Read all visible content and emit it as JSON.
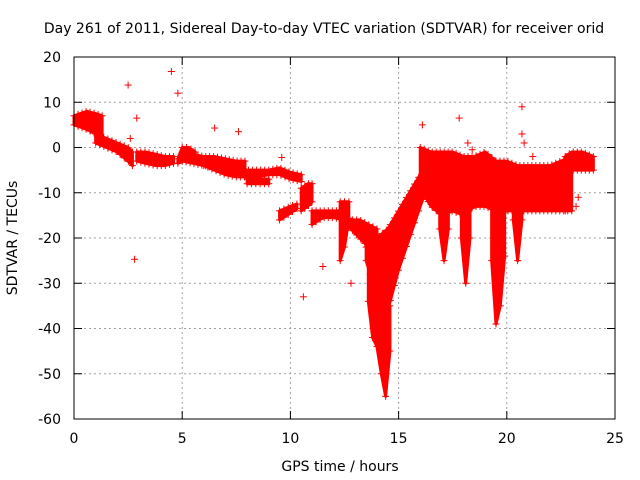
{
  "chart_data": {
    "type": "scatter",
    "title": "Day 261 of 2011, Sidereal Day-to-day VTEC variation (SDTVAR) for receiver orid",
    "xlabel": "GPS time / hours",
    "ylabel": "SDTVAR / TECUs",
    "xlim": [
      0,
      25
    ],
    "ylim": [
      -60,
      20
    ],
    "x_ticks": [
      0,
      5,
      10,
      15,
      20,
      25
    ],
    "y_ticks": [
      -60,
      -50,
      -40,
      -30,
      -20,
      -10,
      0,
      10,
      20
    ],
    "x_tick_labels": [
      "0",
      "5",
      "10",
      "15",
      "20",
      "25"
    ],
    "y_tick_labels": [
      "-60",
      "-50",
      "-40",
      "-30",
      "-20",
      "-10",
      "0",
      "10",
      "20"
    ],
    "grid": true,
    "marker": "+",
    "color": "#ff0000",
    "series": [
      {
        "name": "SDTVAR",
        "bands": [
          {
            "x": [
              0,
              0.3,
              0.6,
              1.0,
              1.3
            ],
            "lower": [
              5,
              4.5,
              4,
              3,
              2
            ],
            "upper": [
              7,
              7.5,
              8,
              7.5,
              7
            ]
          },
          {
            "x": [
              1.0,
              1.5,
              2.0,
              2.5,
              2.7
            ],
            "lower": [
              1,
              0,
              -1,
              -3,
              -4
            ],
            "upper": [
              3,
              2,
              1,
              0,
              -1
            ]
          },
          {
            "x": [
              2.9,
              3.3,
              3.8,
              4.2,
              4.6
            ],
            "lower": [
              -3,
              -3.5,
              -4,
              -4,
              -3.5
            ],
            "upper": [
              -1,
              -1,
              -1.5,
              -2,
              -2
            ]
          },
          {
            "x": [
              4.8,
              5.0,
              5.3,
              5.6
            ],
            "lower": [
              -3.5,
              -3,
              -2,
              -2.5
            ],
            "upper": [
              -2.5,
              0,
              0,
              -1
            ]
          },
          {
            "x": [
              5.0,
              5.5,
              6.0,
              6.5,
              7.0,
              7.5,
              7.9
            ],
            "lower": [
              -3,
              -3.5,
              -4,
              -4.5,
              -5,
              -5.5,
              -5
            ],
            "upper": [
              -1,
              -1.5,
              -2,
              -2,
              -2.5,
              -3,
              -3
            ]
          },
          {
            "x": [
              6.0,
              6.5,
              7.0,
              7.5,
              8.0,
              8.5,
              9.0,
              9.5,
              10.0,
              10.5
            ],
            "lower": [
              -4,
              -5,
              -6,
              -6.5,
              -6.5,
              -6.5,
              -6,
              -6,
              -7,
              -7.5
            ],
            "upper": [
              -3,
              -3.5,
              -4,
              -4.5,
              -5,
              -5,
              -5,
              -4.5,
              -5.5,
              -6
            ]
          },
          {
            "x": [
              8.0,
              8.5,
              9.0
            ],
            "lower": [
              -8,
              -8,
              -8
            ],
            "upper": [
              -7,
              -7,
              -7
            ]
          },
          {
            "x": [
              9.5,
              10.0,
              10.3
            ],
            "lower": [
              -16,
              -14.5,
              -13.5
            ],
            "upper": [
              -14,
              -13,
              -12.5
            ]
          },
          {
            "x": [
              10.5,
              10.8,
              11.0
            ],
            "lower": [
              -14,
              -13,
              -12
            ],
            "upper": [
              -9,
              -8,
              -8
            ]
          },
          {
            "x": [
              11.0,
              11.5,
              12.0,
              12.5
            ],
            "lower": [
              -17,
              -15.5,
              -15.5,
              -16
            ],
            "upper": [
              -14,
              -14,
              -14,
              -14
            ]
          },
          {
            "x": [
              12.3,
              12.5,
              12.7
            ],
            "lower": [
              -25,
              -22,
              -16
            ],
            "upper": [
              -12,
              -12,
              -12
            ]
          },
          {
            "x": [
              12.5,
              12.8,
              13.2,
              13.6,
              14.0
            ],
            "lower": [
              -17,
              -18,
              -20,
              -22,
              -24
            ],
            "upper": [
              -15,
              -16,
              -16,
              -17,
              -18
            ]
          },
          {
            "x": [
              13.6,
              13.8,
              14.0,
              14.2,
              14.4,
              14.6
            ],
            "lower": [
              -34,
              -42,
              -44,
              -50,
              -55,
              -45
            ],
            "upper": [
              -24,
              -28,
              -30,
              -30,
              -34,
              -35
            ]
          },
          {
            "x": [
              13.5,
              14.0,
              14.5,
              15.0,
              15.5,
              16.0,
              16.3
            ],
            "lower": [
              -25,
              -33,
              -36,
              -27,
              -20,
              -13,
              -9
            ],
            "upper": [
              -22,
              -20,
              -18,
              -14,
              -10,
              -6,
              -3
            ]
          },
          {
            "x": [
              16.0,
              16.5,
              17.0,
              17.5,
              18.0,
              18.5,
              19.0,
              19.5,
              20.0,
              20.5,
              21.0,
              21.5,
              22.0,
              22.5,
              23.0
            ],
            "lower": [
              -9,
              -13,
              -15,
              -14,
              -15,
              -13,
              -13,
              -14,
              -14,
              -14,
              -14,
              -14,
              -14,
              -14,
              -14
            ],
            "upper": [
              0,
              -1,
              -1,
              -1,
              -2,
              -2,
              -1,
              -3,
              -3,
              -4,
              -4,
              -4,
              -4,
              -3,
              -2
            ]
          },
          {
            "x": [
              16.9,
              17.1,
              17.3
            ],
            "lower": [
              -18,
              -25,
              -18
            ],
            "upper": [
              -10,
              -10,
              -10
            ]
          },
          {
            "x": [
              17.9,
              18.1,
              18.3
            ],
            "lower": [
              -20,
              -30,
              -20
            ],
            "upper": [
              -10,
              -10,
              -10
            ]
          },
          {
            "x": [
              19.3,
              19.5,
              19.7,
              19.9
            ],
            "lower": [
              -25,
              -39,
              -35,
              -24
            ],
            "upper": [
              -10,
              -12,
              -12,
              -10
            ]
          },
          {
            "x": [
              20.3,
              20.5,
              20.7
            ],
            "lower": [
              -16,
              -25,
              -16
            ],
            "upper": [
              -6,
              -6,
              -6
            ]
          },
          {
            "x": [
              22.7,
              23.0,
              23.5,
              24.0
            ],
            "lower": [
              -14,
              -5,
              -5,
              -5
            ],
            "upper": [
              -2,
              -1,
              -1,
              -2
            ]
          }
        ],
        "outliers": [
          {
            "x": 4.5,
            "y": 16.8
          },
          {
            "x": 2.5,
            "y": 13.8
          },
          {
            "x": 4.8,
            "y": 12
          },
          {
            "x": 2.8,
            "y": -24.7
          },
          {
            "x": 2.6,
            "y": 2
          },
          {
            "x": 2.9,
            "y": 6.5
          },
          {
            "x": 6.5,
            "y": 4.3
          },
          {
            "x": 7.6,
            "y": 3.5
          },
          {
            "x": 9.6,
            "y": -2.2
          },
          {
            "x": 10.6,
            "y": -33
          },
          {
            "x": 11.5,
            "y": -26.3
          },
          {
            "x": 12.8,
            "y": -30
          },
          {
            "x": 16.1,
            "y": 5
          },
          {
            "x": 17.8,
            "y": 6.5
          },
          {
            "x": 18.2,
            "y": 1
          },
          {
            "x": 18.4,
            "y": -0.5
          },
          {
            "x": 20.7,
            "y": 9
          },
          {
            "x": 20.7,
            "y": 3
          },
          {
            "x": 20.8,
            "y": 1
          },
          {
            "x": 21.2,
            "y": -2
          },
          {
            "x": 23.2,
            "y": -13
          },
          {
            "x": 23.3,
            "y": -11
          },
          {
            "x": 19.0,
            "y": -6
          }
        ]
      }
    ]
  }
}
